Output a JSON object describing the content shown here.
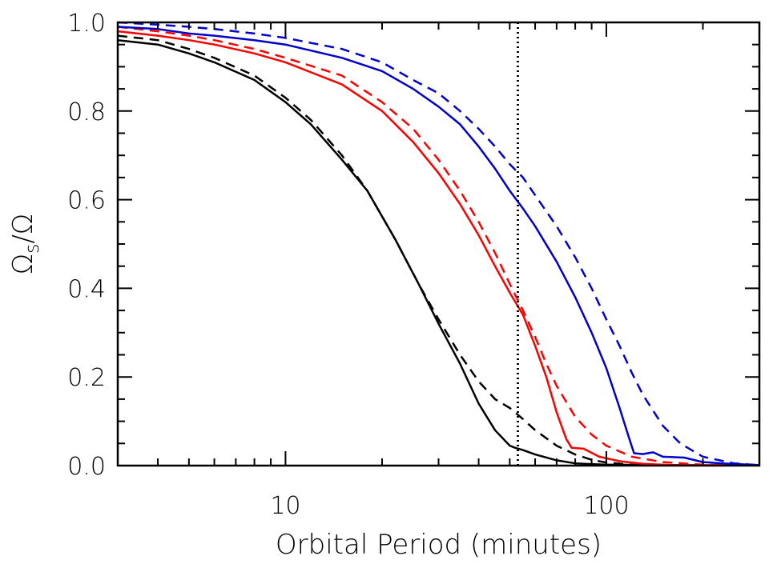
{
  "chart_data": {
    "type": "line",
    "title": "",
    "xlabel": "Orbital Period (minutes)",
    "ylabel_main": "Ω",
    "ylabel_sub": "s",
    "ylabel_rest": "/Ω",
    "xscale": "log",
    "xlim": [
      3,
      300
    ],
    "ylim": [
      0.0,
      1.0
    ],
    "grid": false,
    "legend": "none",
    "x_tick_labels": [
      "10",
      "100"
    ],
    "x_ticks": [
      10,
      100
    ],
    "y_tick_labels": [
      "0.0",
      "0.2",
      "0.4",
      "0.6",
      "0.8",
      "1.0"
    ],
    "y_ticks": [
      0.0,
      0.2,
      0.4,
      0.6,
      0.8,
      1.0
    ],
    "vline": {
      "x": 53,
      "style": "dotted",
      "color": "#000000"
    },
    "series": [
      {
        "color": "#000000",
        "style": "solid",
        "points": [
          [
            3,
            0.96
          ],
          [
            4,
            0.95
          ],
          [
            5,
            0.93
          ],
          [
            6,
            0.91
          ],
          [
            8,
            0.87
          ],
          [
            10,
            0.82
          ],
          [
            12,
            0.77
          ],
          [
            15,
            0.69
          ],
          [
            18,
            0.62
          ],
          [
            22,
            0.51
          ],
          [
            26,
            0.41
          ],
          [
            30,
            0.32
          ],
          [
            35,
            0.23
          ],
          [
            40,
            0.14
          ],
          [
            45,
            0.08
          ],
          [
            50,
            0.045
          ],
          [
            52,
            0.04
          ],
          [
            55,
            0.035
          ],
          [
            60,
            0.025
          ],
          [
            70,
            0.012
          ],
          [
            80,
            0.005
          ],
          [
            100,
            0.002
          ],
          [
            300,
            0.0
          ]
        ]
      },
      {
        "color": "#000000",
        "style": "dashed",
        "points": [
          [
            3,
            0.97
          ],
          [
            4,
            0.96
          ],
          [
            5,
            0.94
          ],
          [
            6,
            0.92
          ],
          [
            8,
            0.88
          ],
          [
            10,
            0.83
          ],
          [
            12,
            0.78
          ],
          [
            15,
            0.7
          ],
          [
            18,
            0.62
          ],
          [
            22,
            0.51
          ],
          [
            26,
            0.41
          ],
          [
            30,
            0.33
          ],
          [
            35,
            0.25
          ],
          [
            40,
            0.19
          ],
          [
            45,
            0.15
          ],
          [
            50,
            0.13
          ],
          [
            55,
            0.105
          ],
          [
            60,
            0.08
          ],
          [
            70,
            0.045
          ],
          [
            80,
            0.025
          ],
          [
            90,
            0.013
          ],
          [
            100,
            0.007
          ],
          [
            120,
            0.002
          ],
          [
            300,
            0.0
          ]
        ]
      },
      {
        "color": "#ff0000",
        "style": "solid",
        "points": [
          [
            3,
            0.98
          ],
          [
            4,
            0.97
          ],
          [
            5,
            0.96
          ],
          [
            6,
            0.95
          ],
          [
            8,
            0.93
          ],
          [
            10,
            0.91
          ],
          [
            15,
            0.86
          ],
          [
            20,
            0.8
          ],
          [
            25,
            0.73
          ],
          [
            30,
            0.66
          ],
          [
            35,
            0.59
          ],
          [
            40,
            0.52
          ],
          [
            45,
            0.45
          ],
          [
            50,
            0.39
          ],
          [
            55,
            0.34
          ],
          [
            60,
            0.27
          ],
          [
            65,
            0.2
          ],
          [
            70,
            0.12
          ],
          [
            75,
            0.06
          ],
          [
            78,
            0.04
          ],
          [
            85,
            0.038
          ],
          [
            95,
            0.02
          ],
          [
            110,
            0.01
          ],
          [
            130,
            0.004
          ],
          [
            160,
            0.001
          ],
          [
            300,
            0.0
          ]
        ]
      },
      {
        "color": "#ff0000",
        "style": "dashed",
        "points": [
          [
            3,
            0.99
          ],
          [
            4,
            0.98
          ],
          [
            5,
            0.97
          ],
          [
            6,
            0.96
          ],
          [
            8,
            0.94
          ],
          [
            10,
            0.92
          ],
          [
            15,
            0.88
          ],
          [
            20,
            0.82
          ],
          [
            25,
            0.76
          ],
          [
            30,
            0.69
          ],
          [
            35,
            0.62
          ],
          [
            40,
            0.55
          ],
          [
            45,
            0.48
          ],
          [
            50,
            0.41
          ],
          [
            55,
            0.35
          ],
          [
            60,
            0.29
          ],
          [
            65,
            0.23
          ],
          [
            70,
            0.18
          ],
          [
            80,
            0.11
          ],
          [
            90,
            0.07
          ],
          [
            100,
            0.045
          ],
          [
            120,
            0.02
          ],
          [
            150,
            0.008
          ],
          [
            200,
            0.002
          ],
          [
            300,
            0.0
          ]
        ]
      },
      {
        "color": "#0000cc",
        "style": "solid",
        "points": [
          [
            3,
            0.99
          ],
          [
            4,
            0.985
          ],
          [
            5,
            0.975
          ],
          [
            6,
            0.97
          ],
          [
            8,
            0.96
          ],
          [
            10,
            0.95
          ],
          [
            15,
            0.92
          ],
          [
            20,
            0.89
          ],
          [
            25,
            0.85
          ],
          [
            30,
            0.81
          ],
          [
            35,
            0.77
          ],
          [
            40,
            0.72
          ],
          [
            45,
            0.67
          ],
          [
            50,
            0.62
          ],
          [
            55,
            0.58
          ],
          [
            60,
            0.54
          ],
          [
            70,
            0.46
          ],
          [
            80,
            0.38
          ],
          [
            90,
            0.3
          ],
          [
            100,
            0.22
          ],
          [
            110,
            0.13
          ],
          [
            118,
            0.06
          ],
          [
            122,
            0.028
          ],
          [
            130,
            0.026
          ],
          [
            140,
            0.03
          ],
          [
            150,
            0.02
          ],
          [
            175,
            0.018
          ],
          [
            200,
            0.008
          ],
          [
            230,
            0.005
          ],
          [
            300,
            0.001
          ]
        ]
      },
      {
        "color": "#0000cc",
        "style": "dashed",
        "points": [
          [
            3,
            1.0
          ],
          [
            4,
            0.995
          ],
          [
            5,
            0.99
          ],
          [
            6,
            0.985
          ],
          [
            8,
            0.975
          ],
          [
            10,
            0.965
          ],
          [
            15,
            0.94
          ],
          [
            20,
            0.91
          ],
          [
            25,
            0.87
          ],
          [
            30,
            0.84
          ],
          [
            35,
            0.8
          ],
          [
            40,
            0.76
          ],
          [
            45,
            0.72
          ],
          [
            50,
            0.68
          ],
          [
            55,
            0.65
          ],
          [
            60,
            0.61
          ],
          [
            70,
            0.54
          ],
          [
            80,
            0.47
          ],
          [
            90,
            0.4
          ],
          [
            100,
            0.33
          ],
          [
            110,
            0.27
          ],
          [
            120,
            0.21
          ],
          [
            130,
            0.16
          ],
          [
            150,
            0.09
          ],
          [
            170,
            0.05
          ],
          [
            200,
            0.02
          ],
          [
            250,
            0.005
          ],
          [
            300,
            0.001
          ]
        ]
      }
    ]
  }
}
